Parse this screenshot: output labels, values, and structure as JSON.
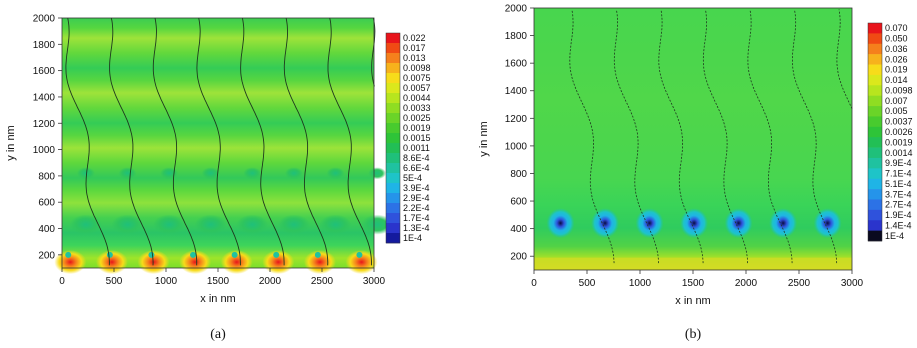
{
  "chart_data": [
    {
      "type": "heatmap",
      "caption": "(a)",
      "xlabel": "x in nm",
      "ylabel": "y in nm",
      "xlim": [
        0,
        3000
      ],
      "ylim": [
        100,
        2000
      ],
      "x_ticks": [
        "0",
        "500",
        "1000",
        "1500",
        "2000",
        "2500",
        "3000"
      ],
      "y_ticks": [
        "200",
        "400",
        "600",
        "800",
        "1000",
        "1200",
        "1400",
        "1600",
        "1800",
        "2000"
      ],
      "colorbar": [
        "0.022",
        "0.017",
        "0.013",
        "0.0098",
        "0.0075",
        "0.0057",
        "0.0044",
        "0.0033",
        "0.0025",
        "0.0019",
        "0.0015",
        "0.0011",
        "8.6E-4",
        "6.6E-4",
        "5E-4",
        "3.9E-4",
        "2.9E-4",
        "2.2E-4",
        "1.7E-4",
        "1.3E-4",
        "1E-4"
      ],
      "colorbar_colors": [
        "#e8141b",
        "#f04a14",
        "#f5801c",
        "#f7b21c",
        "#f7dc1a",
        "#dbe81c",
        "#b7e51e",
        "#8fdd22",
        "#6ad428",
        "#48cb2e",
        "#2ec438",
        "#22bf55",
        "#1fc07a",
        "#1fc2a0",
        "#1ec4c8",
        "#1fb4e6",
        "#2594ea",
        "#2c72e6",
        "#2f52dc",
        "#2a34cc",
        "#141a9e"
      ],
      "grid": false,
      "pattern": "alternating horizontal bands with periodic hot spots near y=150 and cooler spots near y=400 and y=800; 7 sloped iso-lines"
    },
    {
      "type": "heatmap",
      "caption": "(b)",
      "xlabel": "x in nm",
      "ylabel": "y in nm",
      "xlim": [
        0,
        3000
      ],
      "ylim": [
        100,
        2000
      ],
      "x_ticks": [
        "0",
        "500",
        "1000",
        "1500",
        "2000",
        "2500",
        "3000"
      ],
      "y_ticks": [
        "200",
        "400",
        "600",
        "800",
        "1000",
        "1200",
        "1400",
        "1600",
        "1800",
        "2000"
      ],
      "colorbar": [
        "0.070",
        "0.050",
        "0.036",
        "0.026",
        "0.019",
        "0.014",
        "0.0098",
        "0.007",
        "0.005",
        "0.0037",
        "0.0026",
        "0.0019",
        "0.0014",
        "9.9E-4",
        "7.1E-4",
        "5.1E-4",
        "3.7E-4",
        "2.7E-4",
        "1.9E-4",
        "1.4E-4",
        "1E-4"
      ],
      "colorbar_colors": [
        "#e8141b",
        "#f04a14",
        "#f5801c",
        "#f7b21c",
        "#f7dc1a",
        "#dbe81c",
        "#b7e51e",
        "#8fdd22",
        "#6ad428",
        "#48cb2e",
        "#2ec438",
        "#22bf55",
        "#1fc07a",
        "#1fc2a0",
        "#1ec4c8",
        "#1fb4e6",
        "#2594ea",
        "#2c72e6",
        "#2f52dc",
        "#2a34cc",
        "#0a0a20"
      ],
      "grid": false,
      "pattern": "mostly uniform green with 7 blue/cyan spots near y=430 and a yellow band near y=150; dashed iso-lines"
    }
  ]
}
